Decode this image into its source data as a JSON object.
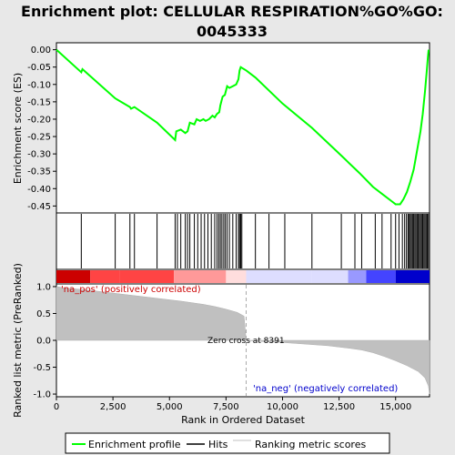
{
  "chart_data": {
    "type": "line",
    "title_line1": "Enrichment plot: CELLULAR RESPIRATION%GO%GO:",
    "title_line2": "0045333",
    "xlabel": "Rank in Ordered Dataset",
    "ylabel_top": "Enrichment score (ES)",
    "ylabel_bottom": "Ranked list metric (PreRanked)",
    "xlim": [
      0,
      16500
    ],
    "ylim_top": [
      -0.47,
      0.02
    ],
    "ylim_bottom": [
      -1.05,
      1.05
    ],
    "x_ticks": [
      {
        "value": 0,
        "label": "0"
      },
      {
        "value": 2500,
        "label": "2,500"
      },
      {
        "value": 5000,
        "label": "5,000"
      },
      {
        "value": 7500,
        "label": "7,500"
      },
      {
        "value": 10000,
        "label": "10,000"
      },
      {
        "value": 12500,
        "label": "12,500"
      },
      {
        "value": 15000,
        "label": "15,000"
      }
    ],
    "y_ticks_top": [
      {
        "value": 0.0,
        "label": "0.00"
      },
      {
        "value": -0.05,
        "label": "-0.05"
      },
      {
        "value": -0.1,
        "label": "-0.10"
      },
      {
        "value": -0.15,
        "label": "-0.15"
      },
      {
        "value": -0.2,
        "label": "-0.20"
      },
      {
        "value": -0.25,
        "label": "-0.25"
      },
      {
        "value": -0.3,
        "label": "-0.30"
      },
      {
        "value": -0.35,
        "label": "-0.35"
      },
      {
        "value": -0.4,
        "label": "-0.40"
      },
      {
        "value": -0.45,
        "label": "-0.45"
      }
    ],
    "y_ticks_bottom": [
      {
        "value": 1.0,
        "label": "1.0"
      },
      {
        "value": 0.5,
        "label": "0.5"
      },
      {
        "value": 0.0,
        "label": "0.0"
      },
      {
        "value": -0.5,
        "label": "-0.5"
      },
      {
        "value": -1.0,
        "label": "-1.0"
      }
    ],
    "series": [
      {
        "name": "Enrichment profile",
        "color": "#00ff00",
        "points": [
          [
            0,
            0.0
          ],
          [
            1100,
            -0.065
          ],
          [
            1150,
            -0.056
          ],
          [
            2600,
            -0.14
          ],
          [
            3250,
            -0.165
          ],
          [
            3300,
            -0.17
          ],
          [
            3450,
            -0.165
          ],
          [
            4450,
            -0.21
          ],
          [
            5250,
            -0.26
          ],
          [
            5300,
            -0.235
          ],
          [
            5500,
            -0.23
          ],
          [
            5700,
            -0.24
          ],
          [
            5800,
            -0.235
          ],
          [
            5900,
            -0.21
          ],
          [
            6100,
            -0.215
          ],
          [
            6200,
            -0.2
          ],
          [
            6350,
            -0.205
          ],
          [
            6500,
            -0.2
          ],
          [
            6600,
            -0.205
          ],
          [
            6750,
            -0.2
          ],
          [
            6900,
            -0.19
          ],
          [
            7000,
            -0.195
          ],
          [
            7100,
            -0.185
          ],
          [
            7200,
            -0.18
          ],
          [
            7250,
            -0.16
          ],
          [
            7350,
            -0.135
          ],
          [
            7450,
            -0.13
          ],
          [
            7550,
            -0.105
          ],
          [
            7650,
            -0.11
          ],
          [
            7800,
            -0.105
          ],
          [
            7950,
            -0.1
          ],
          [
            8050,
            -0.085
          ],
          [
            8100,
            -0.06
          ],
          [
            8150,
            -0.05
          ],
          [
            8400,
            -0.06
          ],
          [
            8800,
            -0.08
          ],
          [
            10000,
            -0.155
          ],
          [
            11300,
            -0.225
          ],
          [
            12600,
            -0.305
          ],
          [
            13400,
            -0.355
          ],
          [
            14000,
            -0.395
          ],
          [
            14500,
            -0.42
          ],
          [
            14800,
            -0.435
          ],
          [
            15000,
            -0.445
          ],
          [
            15200,
            -0.445
          ],
          [
            15350,
            -0.43
          ],
          [
            15500,
            -0.41
          ],
          [
            15650,
            -0.38
          ],
          [
            15800,
            -0.345
          ],
          [
            15950,
            -0.29
          ],
          [
            16100,
            -0.235
          ],
          [
            16200,
            -0.185
          ],
          [
            16300,
            -0.12
          ],
          [
            16380,
            -0.06
          ],
          [
            16430,
            -0.02
          ],
          [
            16460,
            0.0
          ]
        ]
      }
    ],
    "hits": [
      1100,
      2600,
      3250,
      3450,
      4450,
      5250,
      5350,
      5500,
      5700,
      5800,
      5900,
      6100,
      6250,
      6400,
      6550,
      6700,
      6850,
      7000,
      7100,
      7180,
      7250,
      7320,
      7400,
      7470,
      7550,
      7650,
      7800,
      7950,
      8050,
      8100,
      8150,
      8200,
      8800,
      9400,
      10100,
      11300,
      12600,
      13200,
      13500,
      14100,
      14400,
      14800,
      15000,
      15150,
      15300,
      15400,
      15480,
      15550,
      15600,
      15650,
      15700,
      15750,
      15800,
      15850,
      15900,
      15950,
      16000,
      16050,
      16100,
      16150,
      16200,
      16250,
      16300,
      16350,
      16400,
      16450
    ],
    "metric_profile": [
      [
        0,
        1.0
      ],
      [
        300,
        0.98
      ],
      [
        1500,
        0.93
      ],
      [
        2500,
        0.88
      ],
      [
        3500,
        0.83
      ],
      [
        4500,
        0.78
      ],
      [
        5500,
        0.73
      ],
      [
        6500,
        0.67
      ],
      [
        7000,
        0.63
      ],
      [
        7500,
        0.58
      ],
      [
        8000,
        0.52
      ],
      [
        8300,
        0.45
      ],
      [
        8391,
        0.0
      ],
      [
        9000,
        -0.02
      ],
      [
        10000,
        -0.04
      ],
      [
        11000,
        -0.07
      ],
      [
        12000,
        -0.1
      ],
      [
        13000,
        -0.15
      ],
      [
        13500,
        -0.18
      ],
      [
        14000,
        -0.23
      ],
      [
        14500,
        -0.3
      ],
      [
        15000,
        -0.38
      ],
      [
        15500,
        -0.47
      ],
      [
        16000,
        -0.58
      ],
      [
        16300,
        -0.7
      ],
      [
        16450,
        -0.85
      ],
      [
        16500,
        -1.0
      ]
    ],
    "zero_cross": 8391,
    "annotations": {
      "pos_label": "'na_pos' (positively correlated)",
      "neg_label": "'na_neg' (negatively correlated)",
      "zero_label": "Zero cross at 8391"
    },
    "legend": {
      "position": "bottom",
      "entries": [
        {
          "label": "Enrichment profile",
          "color": "#00ff00"
        },
        {
          "label": "Hits",
          "color": "#000000"
        },
        {
          "label": "Ranking metric scores",
          "color": "#c0c0c0"
        }
      ]
    },
    "heatmap_colors": [
      "#cc0000",
      "#ff4444",
      "#ff9999",
      "#ffdddd",
      "#ddddff",
      "#9999ff",
      "#4444ff",
      "#0000cc"
    ]
  }
}
